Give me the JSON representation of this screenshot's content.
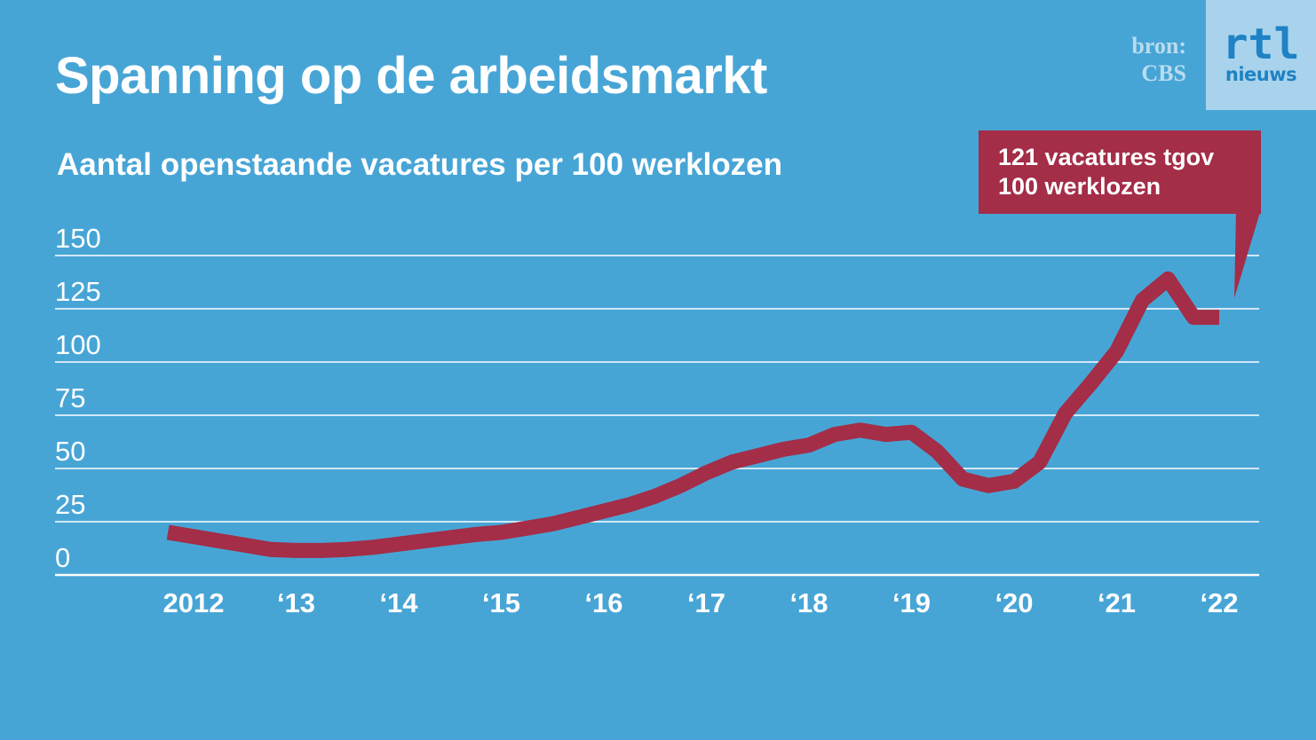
{
  "header": {
    "title": "Spanning op de arbeidsmarkt",
    "subtitle": "Aantal openstaande vacatures per 100 werklozen",
    "source_line1": "bron:",
    "source_line2": "CBS",
    "logo_top": "rtl",
    "logo_bottom": "nieuws"
  },
  "callout": {
    "line1": "121 vacatures tgov",
    "line2": "100 werklozen"
  },
  "colors": {
    "background": "#47A5D6",
    "line": "#A42D47",
    "grid": "#FFFFFF",
    "callout": "#A42D47"
  },
  "chart_data": {
    "type": "line",
    "ylim": [
      0,
      150
    ],
    "yticks": [
      0,
      25,
      50,
      75,
      100,
      125,
      150
    ],
    "ytick_labels": [
      "0",
      "25",
      "50",
      "75",
      "100",
      "125",
      "150"
    ],
    "xlim": [
      2011.5,
      2022.5
    ],
    "xticks": [
      2012,
      2013,
      2014,
      2015,
      2016,
      2017,
      2018,
      2019,
      2020,
      2021,
      2022
    ],
    "xtick_labels": [
      "2012",
      "‘13",
      "‘14",
      "‘15",
      "‘16",
      "‘17",
      "‘18",
      "‘19",
      "‘20",
      "‘21",
      "‘22"
    ],
    "grid": true,
    "series": [
      {
        "x": [
          2011.75,
          2012.0,
          2012.25,
          2012.5,
          2012.75,
          2013.0,
          2013.25,
          2013.5,
          2013.75,
          2014.0,
          2014.25,
          2014.5,
          2014.75,
          2015.0,
          2015.25,
          2015.5,
          2015.75,
          2016.0,
          2016.25,
          2016.5,
          2016.75,
          2017.0,
          2017.25,
          2017.5,
          2017.75,
          2018.0,
          2018.25,
          2018.5,
          2018.75,
          2019.0,
          2019.25,
          2019.5,
          2019.75,
          2020.0,
          2020.25,
          2020.5,
          2020.75,
          2021.0,
          2021.25,
          2021.5,
          2021.75,
          2022.0
        ],
        "values": [
          20,
          18,
          16,
          14,
          12,
          11.5,
          11.5,
          12,
          13,
          14.5,
          16,
          17.5,
          19,
          20,
          22,
          24,
          27,
          30,
          33,
          37,
          42,
          48,
          53,
          56,
          59,
          61,
          66,
          68,
          66,
          67,
          58,
          45,
          42,
          44,
          53,
          76,
          90,
          105,
          129,
          139,
          121,
          121
        ]
      }
    ]
  }
}
